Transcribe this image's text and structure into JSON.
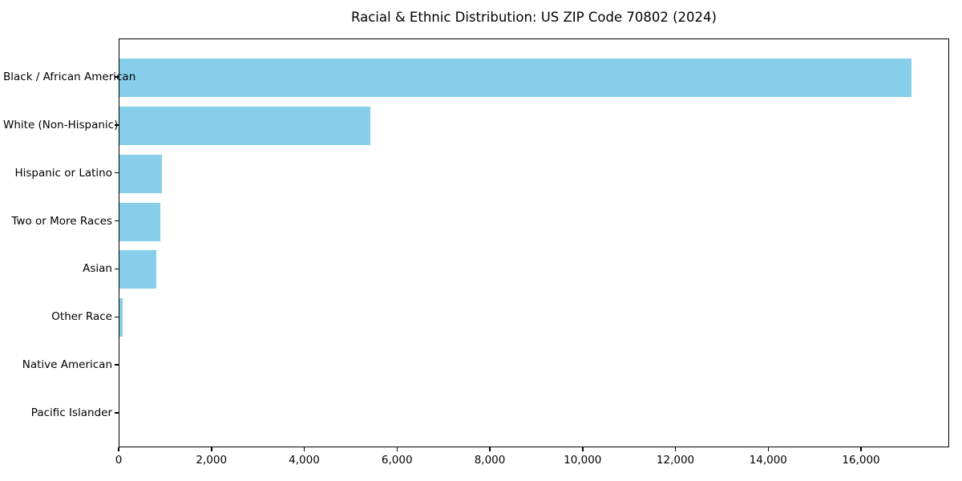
{
  "chart_data": {
    "type": "bar",
    "orientation": "horizontal",
    "title": "Racial & Ethnic Distribution: US ZIP Code 70802 (2024)",
    "categories": [
      "Black / African American",
      "White (Non-Hispanic)",
      "Hispanic or Latino",
      "Two or More Races",
      "Asian",
      "Other Race",
      "Native American",
      "Pacific Islander"
    ],
    "values": [
      17070,
      5400,
      910,
      880,
      790,
      75,
      0,
      0
    ],
    "xlabel": "",
    "ylabel": "",
    "xlim": [
      0,
      17900
    ],
    "x_ticks": [
      0,
      2000,
      4000,
      6000,
      8000,
      10000,
      12000,
      14000,
      16000
    ],
    "x_tick_labels": [
      "0",
      "2,000",
      "4,000",
      "6,000",
      "8,000",
      "10,000",
      "12,000",
      "14,000",
      "16,000"
    ],
    "grid": false,
    "legend": false,
    "bar_color": "#87CEEB",
    "axis_color": "#000000",
    "text_color": "#000000",
    "background_color": "#ffffff"
  }
}
